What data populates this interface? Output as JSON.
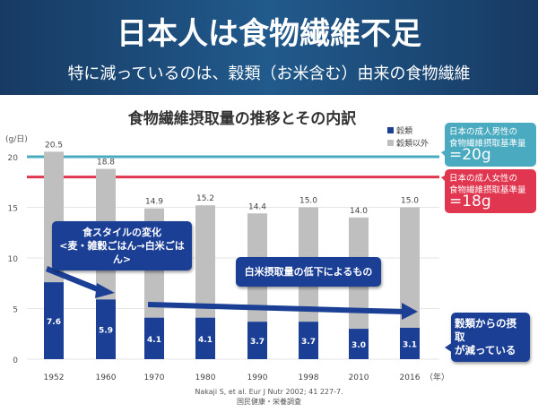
{
  "header": {
    "title": "日本人は食物繊維不足",
    "subtitle": "特に減っているのは、穀類（お米含む）由来の食物繊維"
  },
  "chart_data": {
    "type": "bar",
    "stacked": true,
    "title": "食物繊維摂取量の推移とその内訳",
    "ylabel": "(g/日)",
    "xlabel": "（年）",
    "categories": [
      "1952",
      "1960",
      "1970",
      "1980",
      "1990",
      "1998",
      "2010",
      "2016"
    ],
    "series": [
      {
        "name": "穀類",
        "color": "#1b3f95",
        "values": [
          7.6,
          5.9,
          4.1,
          4.1,
          3.7,
          3.7,
          3.0,
          3.1
        ]
      },
      {
        "name": "穀類以外",
        "color": "#bfbfbf",
        "values": [
          12.9,
          12.9,
          10.8,
          11.1,
          10.7,
          11.3,
          11.0,
          11.9
        ]
      }
    ],
    "totals": [
      20.5,
      18.8,
      14.9,
      15.2,
      14.4,
      15.0,
      14.0,
      15.0
    ],
    "yticks": [
      0,
      5,
      10,
      15,
      20
    ],
    "ylim": [
      0,
      21
    ],
    "reference_lines": [
      {
        "value": 20,
        "color": "#4aaabf",
        "label1": "日本の成人男性の",
        "label2": "食物繊維摂取基準量",
        "label3": "=20g"
      },
      {
        "value": 18,
        "color": "#e0364f",
        "label1": "日本の成人女性の",
        "label2": "食物繊維摂取基準量",
        "label3": "=18g"
      }
    ],
    "annotations": {
      "a1_line1": "食スタイルの変化",
      "a1_line2": "<麦・雑穀ごはん→白米ごはん>",
      "a2": "白米摂取量の低下によるもの",
      "a3_line1": "穀類からの摂取",
      "a3_line2": "が減っている"
    }
  },
  "source": {
    "line1": "Nakaji S, et al. Eur J Nutr 2002; 41 227-7.",
    "line2": "国民健康・栄養調査"
  }
}
